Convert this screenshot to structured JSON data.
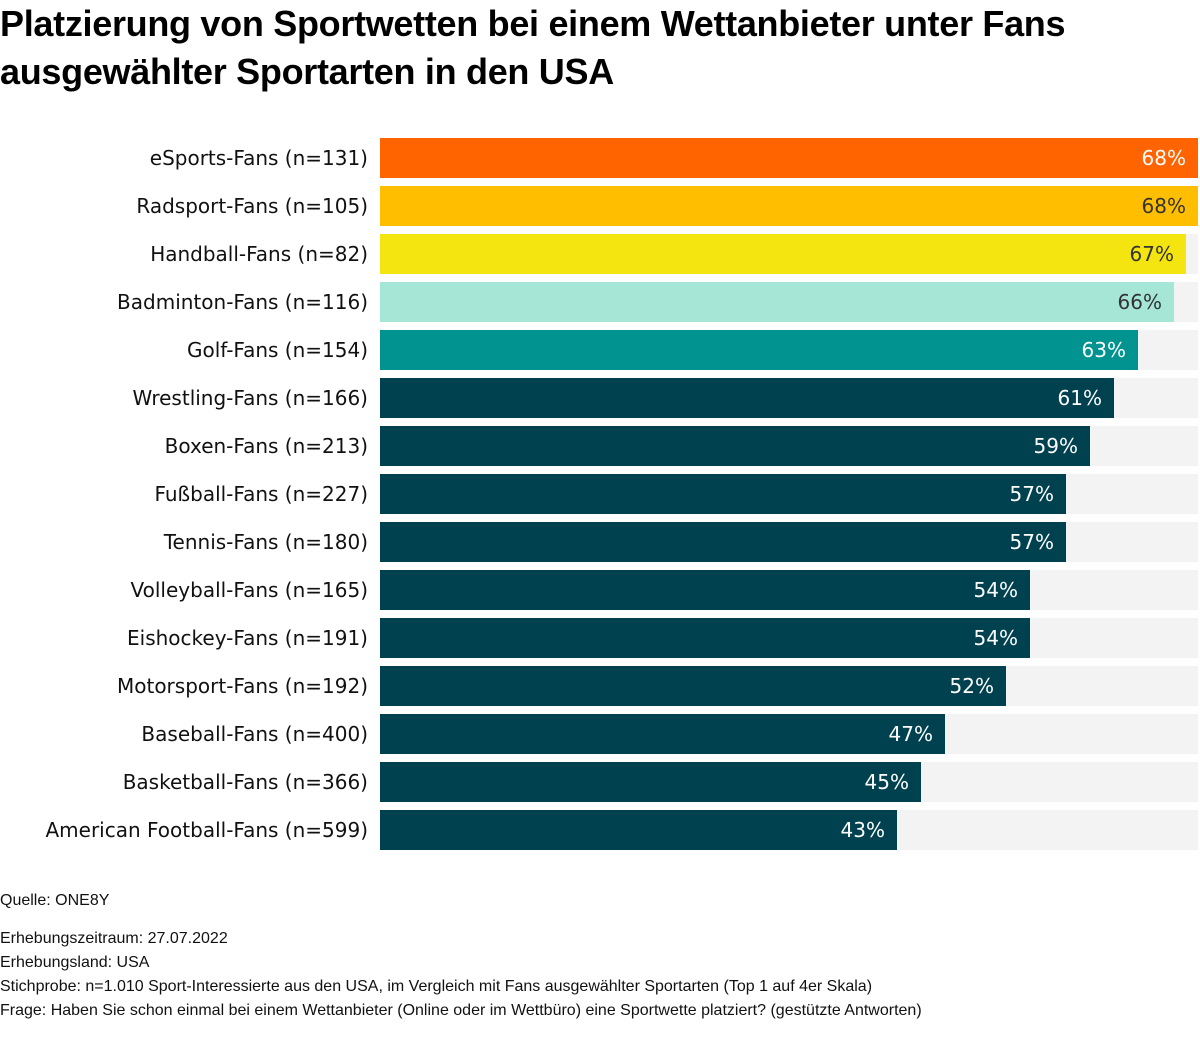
{
  "title": "Platzierung von Sportwetten bei einem Wettanbieter unter Fans ausgewählter Sportarten in den USA",
  "chart_data": {
    "type": "bar",
    "orientation": "horizontal",
    "title": "Platzierung von Sportwetten bei einem Wettanbieter unter Fans ausgewählter Sportarten in den USA",
    "xlabel": "",
    "ylabel": "",
    "unit": "%",
    "xlim": [
      0,
      68
    ],
    "grid": false,
    "categories": [
      "eSports-Fans (n=131)",
      "Radsport-Fans (n=105)",
      "Handball-Fans (n=82)",
      "Badminton-Fans (n=116)",
      "Golf-Fans (n=154)",
      "Wrestling-Fans (n=166)",
      "Boxen-Fans (n=213)",
      "Fußball-Fans (n=227)",
      "Tennis-Fans (n=180)",
      "Volleyball-Fans (n=165)",
      "Eishockey-Fans (n=191)",
      "Motorsport-Fans (n=192)",
      "Baseball-Fans (n=400)",
      "Basketball-Fans (n=366)",
      "American Football-Fans (n=599)"
    ],
    "values": [
      68,
      68,
      67,
      66,
      63,
      61,
      59,
      57,
      57,
      54,
      54,
      52,
      47,
      45,
      43
    ],
    "value_labels": [
      "68%",
      "68%",
      "67%",
      "66%",
      "63%",
      "61%",
      "59%",
      "57%",
      "57%",
      "54%",
      "54%",
      "52%",
      "47%",
      "45%",
      "43%"
    ],
    "bar_colors": [
      "#ff6400",
      "#ffbe00",
      "#f4e511",
      "#a6e6d7",
      "#00938f",
      "#004150",
      "#004150",
      "#004150",
      "#004150",
      "#004150",
      "#004150",
      "#004150",
      "#004150",
      "#004150",
      "#004150"
    ],
    "label_colors": [
      "#ffffff",
      "#333333",
      "#333333",
      "#333333",
      "#ffffff",
      "#ffffff",
      "#ffffff",
      "#ffffff",
      "#ffffff",
      "#ffffff",
      "#ffffff",
      "#ffffff",
      "#ffffff",
      "#ffffff",
      "#ffffff"
    ],
    "track_color": "#f3f3f3"
  },
  "footer": {
    "source": "Quelle: ONE8Y",
    "period": "Erhebungszeitraum: 27.07.2022",
    "country": "Erhebungsland: USA",
    "sample": "Stichprobe: n=1.010 Sport-Interessierte aus den USA, im Vergleich mit Fans ausgewählter Sportarten (Top 1 auf 4er Skala)",
    "question": "Frage: Haben Sie schon einmal bei einem Wettanbieter (Online oder im Wettbüro) eine Sportwette platziert? (gestützte Antworten)"
  }
}
